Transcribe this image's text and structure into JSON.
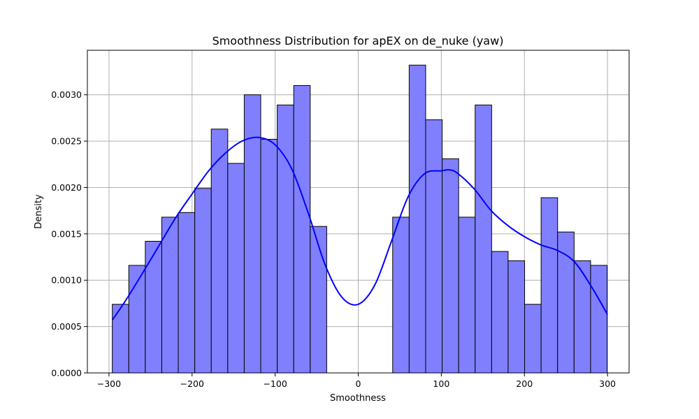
{
  "chart_data": {
    "type": "bar",
    "title": "Smoothness Distribution for apEX on de_nuke (yaw)",
    "xlabel": "Smoothness",
    "ylabel": "Density",
    "xlim": [
      -326,
      326
    ],
    "ylim": [
      0,
      0.00348
    ],
    "grid": true,
    "x_ticks": [
      -300,
      -200,
      -100,
      0,
      100,
      200,
      300
    ],
    "x_tick_labels": [
      "−300",
      "−200",
      "−100",
      "0",
      "100",
      "200",
      "300"
    ],
    "y_ticks": [
      0,
      0.0005,
      0.001,
      0.0015,
      0.002,
      0.0025,
      0.003
    ],
    "y_tick_labels": [
      "0.0000",
      "0.0005",
      "0.0010",
      "0.0015",
      "0.0020",
      "0.0025",
      "0.0030"
    ],
    "bin_start": -296,
    "bin_width": 19.85,
    "bin_densities": [
      0.00074,
      0.00116,
      0.00142,
      0.00168,
      0.00173,
      0.00199,
      0.00263,
      0.00226,
      0.003,
      0.00252,
      0.00289,
      0.0031,
      0.00158,
      0,
      0,
      0,
      0,
      0.00168,
      0.00332,
      0.00273,
      0.00231,
      0.00168,
      0.00289,
      0.00131,
      0.00121,
      0.00074,
      0.00189,
      0.00152,
      0.00121,
      0.00116
    ],
    "kde": {
      "x": [
        -296,
        -280,
        -260,
        -240,
        -220,
        -200,
        -180,
        -160,
        -140,
        -120,
        -100,
        -80,
        -60,
        -40,
        -20,
        0,
        20,
        40,
        60,
        80,
        100,
        110,
        120,
        140,
        160,
        180,
        200,
        220,
        240,
        260,
        280,
        300
      ],
      "y": [
        0.00057,
        0.00078,
        0.00107,
        0.00137,
        0.00167,
        0.00193,
        0.00218,
        0.00237,
        0.0025,
        0.00254,
        0.00246,
        0.0022,
        0.00172,
        0.00117,
        0.00082,
        0.00074,
        0.00095,
        0.00142,
        0.0019,
        0.00215,
        0.00218,
        0.00219,
        0.00215,
        0.00198,
        0.00175,
        0.00159,
        0.00147,
        0.00138,
        0.00132,
        0.0012,
        0.00094,
        0.00063
      ]
    },
    "colors": {
      "bar_fill": "#8080ff",
      "bar_edge": "#000000",
      "kde_line": "#0000ff",
      "grid": "#b0b0b0"
    }
  }
}
